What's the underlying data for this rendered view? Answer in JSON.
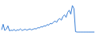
{
  "chart_data": {
    "type": "line",
    "x": [
      0,
      1,
      2,
      3,
      4,
      5,
      6,
      7,
      8,
      9,
      10,
      11,
      12,
      13,
      14,
      15,
      16,
      17,
      18,
      19,
      20,
      21,
      22,
      23,
      24,
      25,
      26,
      27,
      28,
      29,
      30,
      31,
      32,
      33,
      34,
      35,
      36,
      37,
      38,
      39,
      40,
      41,
      42,
      43,
      44,
      45,
      46,
      47,
      48,
      49,
      50,
      51,
      52,
      53,
      54,
      55,
      56,
      57,
      58,
      59
    ],
    "values": [
      12,
      30,
      10,
      14,
      25,
      9,
      11,
      10,
      13,
      9,
      12,
      11,
      15,
      10,
      12,
      14,
      11,
      13,
      15,
      12,
      14,
      16,
      15,
      19,
      18,
      22,
      21,
      25,
      24,
      29,
      27,
      33,
      31,
      37,
      40,
      36,
      45,
      48,
      43,
      55,
      60,
      52,
      68,
      75,
      62,
      90,
      80,
      6,
      5,
      5,
      5,
      5,
      5,
      5,
      5,
      5,
      5,
      5,
      5,
      5
    ],
    "color": "#3a7fd5",
    "xlim": [
      0,
      59
    ],
    "ylim": [
      0,
      100
    ],
    "grid": false,
    "tick_labels": false
  }
}
